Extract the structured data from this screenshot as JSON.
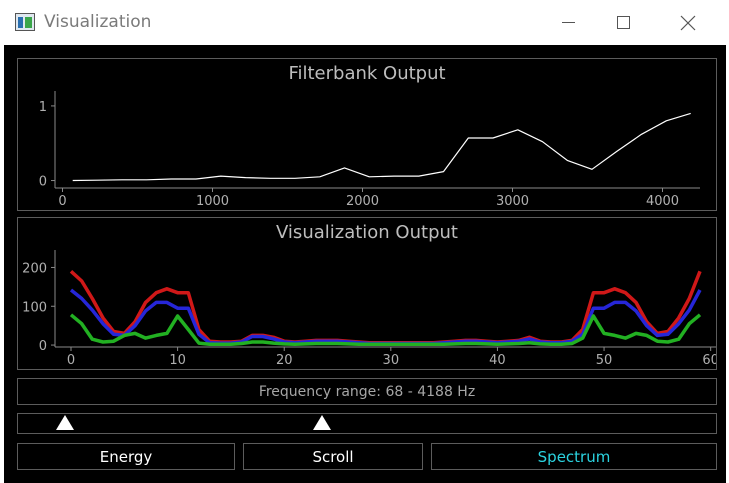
{
  "window": {
    "title": "Visualization",
    "icon": "app-chart-icon"
  },
  "filterbank": {
    "title": "Filterbank Output",
    "chart_data": {
      "type": "line",
      "title": "Filterbank Output",
      "xlim": [
        -50,
        4250
      ],
      "ylim": [
        -0.1,
        1.2
      ],
      "x_ticks": [
        0,
        1000,
        2000,
        3000,
        4000
      ],
      "y_ticks": [
        0,
        1
      ],
      "series": [
        {
          "color": "#ffffff",
          "x": [
            68,
            230,
            395,
            560,
            725,
            890,
            1055,
            1220,
            1385,
            1550,
            1715,
            1880,
            2045,
            2210,
            2375,
            2540,
            2705,
            2870,
            3035,
            3200,
            3365,
            3530,
            3695,
            3860,
            4025,
            4188
          ],
          "y": [
            0.0,
            0.005,
            0.01,
            0.01,
            0.02,
            0.02,
            0.06,
            0.04,
            0.03,
            0.03,
            0.05,
            0.17,
            0.05,
            0.06,
            0.06,
            0.12,
            0.57,
            0.57,
            0.68,
            0.52,
            0.27,
            0.15,
            0.39,
            0.62,
            0.8,
            0.9
          ]
        }
      ]
    }
  },
  "visualization": {
    "title": "Visualization Output",
    "chart_data": {
      "type": "line",
      "title": "Visualization Output",
      "xlim": [
        -1.5,
        60.5
      ],
      "ylim": [
        -5,
        245
      ],
      "x_ticks": [
        0,
        10,
        20,
        30,
        40,
        50,
        60
      ],
      "y_ticks": [
        0,
        100,
        200
      ],
      "series": [
        {
          "color": "#d01818",
          "x": [
            0,
            1,
            2,
            3,
            4,
            5,
            6,
            7,
            8,
            9,
            10,
            11,
            12,
            13,
            14,
            15,
            16,
            17,
            18,
            19,
            20,
            21,
            22,
            23,
            24,
            25,
            26,
            27,
            28,
            29,
            30,
            31,
            32,
            33,
            34,
            35,
            36,
            37,
            38,
            39,
            40,
            41,
            42,
            43,
            44,
            45,
            46,
            47,
            48,
            49,
            50,
            51,
            52,
            53,
            54,
            55,
            56,
            57,
            58,
            59
          ],
          "y": [
            190,
            165,
            120,
            70,
            35,
            30,
            60,
            110,
            135,
            145,
            135,
            135,
            40,
            10,
            8,
            8,
            10,
            25,
            25,
            20,
            10,
            8,
            10,
            12,
            12,
            12,
            10,
            8,
            6,
            6,
            6,
            6,
            6,
            6,
            6,
            8,
            10,
            12,
            12,
            10,
            8,
            10,
            12,
            20,
            10,
            8,
            8,
            12,
            40,
            135,
            135,
            145,
            135,
            110,
            60,
            30,
            35,
            70,
            120,
            190
          ]
        },
        {
          "color": "#2626d8",
          "x": [
            0,
            1,
            2,
            3,
            4,
            5,
            6,
            7,
            8,
            9,
            10,
            11,
            12,
            13,
            14,
            15,
            16,
            17,
            18,
            19,
            20,
            21,
            22,
            23,
            24,
            25,
            26,
            27,
            28,
            29,
            30,
            31,
            32,
            33,
            34,
            35,
            36,
            37,
            38,
            39,
            40,
            41,
            42,
            43,
            44,
            45,
            46,
            47,
            48,
            49,
            50,
            51,
            52,
            53,
            54,
            55,
            56,
            57,
            58,
            59
          ],
          "y": [
            142,
            120,
            90,
            55,
            28,
            25,
            50,
            88,
            110,
            110,
            95,
            95,
            28,
            6,
            5,
            5,
            8,
            22,
            22,
            16,
            8,
            6,
            8,
            10,
            10,
            10,
            8,
            6,
            4,
            4,
            4,
            4,
            4,
            4,
            4,
            6,
            8,
            10,
            10,
            8,
            6,
            8,
            10,
            16,
            8,
            6,
            6,
            10,
            28,
            95,
            95,
            110,
            110,
            88,
            50,
            25,
            28,
            55,
            90,
            142
          ]
        },
        {
          "color": "#22b022",
          "x": [
            0,
            1,
            2,
            3,
            4,
            5,
            6,
            7,
            8,
            9,
            10,
            11,
            12,
            13,
            14,
            15,
            16,
            17,
            18,
            19,
            20,
            21,
            22,
            23,
            24,
            25,
            26,
            27,
            28,
            29,
            30,
            31,
            32,
            33,
            34,
            35,
            36,
            37,
            38,
            39,
            40,
            41,
            42,
            43,
            44,
            45,
            46,
            47,
            48,
            49,
            50,
            51,
            52,
            53,
            54,
            55,
            56,
            57,
            58,
            59
          ],
          "y": [
            78,
            55,
            15,
            8,
            10,
            25,
            30,
            18,
            25,
            30,
            75,
            40,
            5,
            2,
            2,
            2,
            4,
            8,
            8,
            5,
            3,
            2,
            3,
            4,
            4,
            4,
            3,
            2,
            2,
            2,
            2,
            2,
            2,
            2,
            2,
            2,
            3,
            4,
            4,
            3,
            2,
            3,
            4,
            6,
            3,
            2,
            2,
            4,
            18,
            75,
            30,
            25,
            18,
            30,
            25,
            10,
            8,
            15,
            55,
            78
          ]
        }
      ]
    }
  },
  "frequency_label": "Frequency range: 68 - 4188 Hz",
  "range_slider": {
    "low": 0.068,
    "high": 0.435
  },
  "buttons": {
    "energy": "Energy",
    "scroll": "Scroll",
    "spectrum": "Spectrum"
  },
  "colors": {
    "background": "#000000",
    "active_button": "#2bd3e0"
  }
}
